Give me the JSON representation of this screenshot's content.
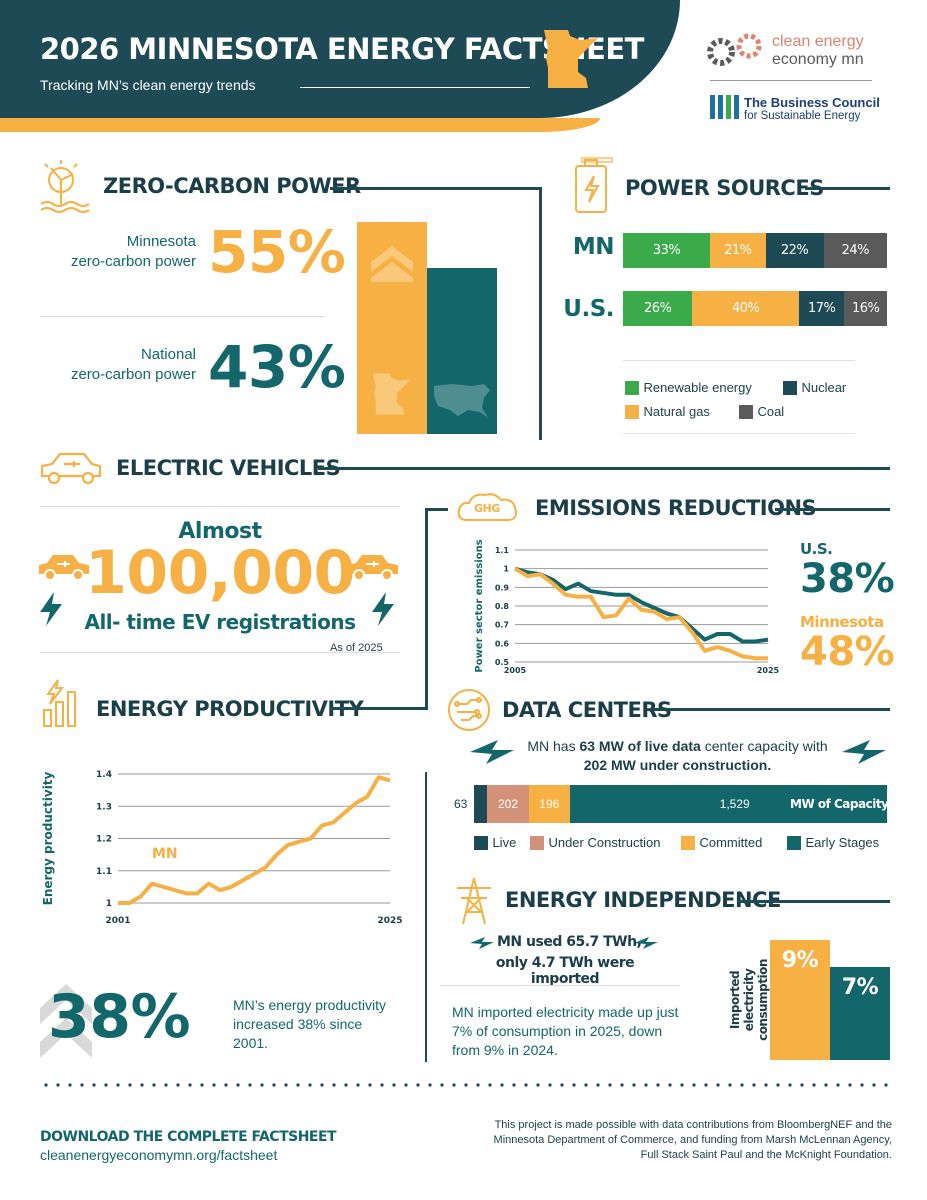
{
  "header": {
    "title": "2026 MINNESOTA ENERGY FACTSHEET",
    "subtitle": "Tracking MN’s clean energy trends",
    "logo1_line1": "clean energy",
    "logo1_line2": "economy mn",
    "logo2_line1": "The Business Council",
    "logo2_line2": "for Sustainable Energy"
  },
  "zero_carbon": {
    "title": "ZERO-CARBON POWER",
    "mn_label_1": "Minnesota",
    "mn_label_2": "zero-carbon power",
    "mn_value": "55%",
    "us_label_1": "National",
    "us_label_2": "zero-carbon power",
    "us_value": "43%",
    "colors": {
      "mn": "#f6b043",
      "us": "#13676b"
    }
  },
  "power_sources": {
    "title": "POWER SOURCES",
    "rows": [
      {
        "label": "MN",
        "segments": [
          {
            "value": 33,
            "text": "33%",
            "color": "#3aaa4a"
          },
          {
            "value": 21,
            "text": "21%",
            "color": "#f6b043"
          },
          {
            "value": 22,
            "text": "22%",
            "color": "#1d4a55"
          },
          {
            "value": 24,
            "text": "24%",
            "color": "#5a5a5a"
          }
        ]
      },
      {
        "label": "U.S.",
        "segments": [
          {
            "value": 26,
            "text": "26%",
            "color": "#3aaa4a"
          },
          {
            "value": 40,
            "text": "40%",
            "color": "#f6b043"
          },
          {
            "value": 17,
            "text": "17%",
            "color": "#1d4a55"
          },
          {
            "value": 16,
            "text": "16%",
            "color": "#5a5a5a"
          }
        ]
      }
    ],
    "legend": [
      {
        "label": "Renewable energy",
        "color": "#3aaa4a"
      },
      {
        "label": "Nuclear",
        "color": "#1d4a55"
      },
      {
        "label": "Natural gas",
        "color": "#f6b043"
      },
      {
        "label": "Coal",
        "color": "#5a5a5a"
      }
    ]
  },
  "ev": {
    "title": "ELECTRIC VEHICLES",
    "line1": "Almost",
    "value": "100,000",
    "line2": "All- time EV registrations",
    "note": "As of 2025"
  },
  "emissions": {
    "title": "EMISSIONS REDUCTIONS",
    "icon_label": "GHG",
    "us_label": "U.S.",
    "us_value": "38%",
    "mn_label": "Minnesota",
    "mn_value": "48%"
  },
  "productivity": {
    "title": "ENERGY PRODUCTIVITY",
    "series_label": "MN",
    "big_value": "38%",
    "text": "MN’s energy productivity increased 38% since 2001."
  },
  "data_centers": {
    "title": "DATA CENTERS",
    "text_pre": "MN has ",
    "text_b1": "63 MW of live data",
    "text_mid": " center capacity with ",
    "text_b2": "202 MW under construction.",
    "outside_label": "63",
    "capacity_label": "MW of Capacity",
    "segments": [
      {
        "value": 63,
        "text": "",
        "color": "#1d4a55"
      },
      {
        "value": 202,
        "text": "202",
        "color": "#d4917a"
      },
      {
        "value": 196,
        "text": "196",
        "color": "#f6b043"
      },
      {
        "value": 1529,
        "text": "1,529",
        "color": "#13676b"
      }
    ],
    "legend": [
      {
        "label": "Live",
        "color": "#1d4a55"
      },
      {
        "label": "Under Construction",
        "color": "#d4917a"
      },
      {
        "label": "Committed",
        "color": "#f6b043"
      },
      {
        "label": "Early Stages",
        "color": "#13676b"
      }
    ]
  },
  "independence": {
    "title": "ENERGY INDEPENDENCE",
    "line1": "MN used 65.7 TWh,",
    "line2": "only 4.7 TWh were imported",
    "text": "MN imported electricity made up just 7% of consumption in 2025, down from 9% in 2024."
  },
  "footer": {
    "download": "DOWNLOAD THE COMPLETE FACTSHEET",
    "url": "cleanenergyeconomymn.org/factsheet",
    "credits": "This project is made possible with data contributions from BloombergNEF and the Minnesota Department of Commerce, and funding from Marsh McLennan Agency, Full Stack Saint Paul and the McKnight Foundation."
  },
  "chart_data": [
    {
      "type": "bar",
      "categories": [
        "Minnesota",
        "National"
      ],
      "values": [
        55,
        43
      ],
      "title": "",
      "xlabel": "",
      "ylabel": ""
    },
    {
      "type": "bar",
      "stacked": true,
      "orientation": "horizontal",
      "categories": [
        "MN",
        "U.S."
      ],
      "series": [
        {
          "name": "Renewable energy",
          "values": [
            33,
            26
          ]
        },
        {
          "name": "Natural gas",
          "values": [
            21,
            40
          ]
        },
        {
          "name": "Nuclear",
          "values": [
            22,
            17
          ]
        },
        {
          "name": "Coal",
          "values": [
            24,
            16
          ]
        }
      ],
      "legend": "bottom"
    },
    {
      "type": "line",
      "title": "",
      "xlabel": "",
      "ylabel": "Power sector emissions",
      "x": [
        2005,
        2006,
        2007,
        2008,
        2009,
        2010,
        2011,
        2012,
        2013,
        2014,
        2015,
        2016,
        2017,
        2018,
        2019,
        2020,
        2021,
        2022,
        2023,
        2024,
        2025
      ],
      "x_ticks": [
        "2005",
        "2025"
      ],
      "ylim": [
        0.5,
        1.1
      ],
      "y_ticks": [
        "0.5",
        "0.6",
        "0.7",
        "0.8",
        "0.9",
        "1",
        "1.1"
      ],
      "grid": true,
      "series": [
        {
          "values": [
            1.0,
            0.98,
            0.97,
            0.94,
            0.89,
            0.92,
            0.88,
            0.87,
            0.86,
            0.86,
            0.82,
            0.79,
            0.76,
            0.74,
            0.68,
            0.62,
            0.65,
            0.65,
            0.61,
            0.61,
            0.62
          ],
          "color": "#13676b"
        },
        {
          "values": [
            1.0,
            0.96,
            0.97,
            0.92,
            0.86,
            0.85,
            0.85,
            0.74,
            0.75,
            0.84,
            0.78,
            0.77,
            0.73,
            0.74,
            0.66,
            0.56,
            0.58,
            0.56,
            0.53,
            0.52,
            0.52
          ],
          "color": "#f6b043"
        }
      ]
    },
    {
      "type": "line",
      "title": "",
      "xlabel": "",
      "ylabel": "Energy productivity",
      "x": [
        2001,
        2002,
        2003,
        2004,
        2005,
        2006,
        2007,
        2008,
        2009,
        2010,
        2011,
        2012,
        2013,
        2014,
        2015,
        2016,
        2017,
        2018,
        2019,
        2020,
        2021,
        2022,
        2023,
        2024,
        2025
      ],
      "x_ticks": [
        "2001",
        "2025"
      ],
      "ylim": [
        1,
        1.4
      ],
      "y_ticks": [
        "1",
        "1.1",
        "1.2",
        "1.3",
        "1.4"
      ],
      "grid": true,
      "series": [
        {
          "name": "MN",
          "values": [
            1.0,
            1.0,
            1.02,
            1.06,
            1.05,
            1.04,
            1.03,
            1.03,
            1.06,
            1.04,
            1.05,
            1.07,
            1.09,
            1.11,
            1.15,
            1.18,
            1.19,
            1.2,
            1.24,
            1.25,
            1.28,
            1.31,
            1.33,
            1.39,
            1.38
          ],
          "color": "#f6b043"
        }
      ]
    },
    {
      "type": "bar",
      "stacked": true,
      "orientation": "horizontal",
      "categories": [
        "MW of Capacity"
      ],
      "series": [
        {
          "name": "Live",
          "values": [
            63
          ]
        },
        {
          "name": "Under Construction",
          "values": [
            202
          ]
        },
        {
          "name": "Committed",
          "values": [
            196
          ]
        },
        {
          "name": "Early Stages",
          "values": [
            1529
          ]
        }
      ],
      "legend": "bottom"
    },
    {
      "type": "bar",
      "categories": [
        "",
        ""
      ],
      "values": [
        9,
        7
      ],
      "data_labels": [
        "9%",
        "7%"
      ],
      "ylabel": "Imported electricity consumption"
    }
  ]
}
